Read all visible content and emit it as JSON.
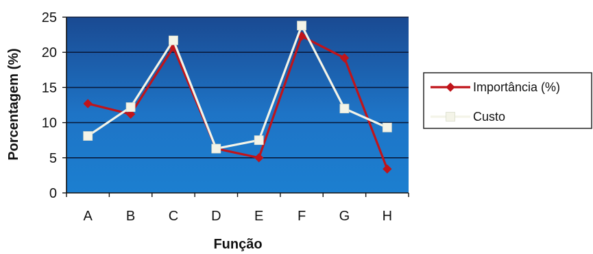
{
  "chart_data": {
    "type": "line",
    "categories": [
      "A",
      "B",
      "C",
      "D",
      "E",
      "F",
      "G",
      "H"
    ],
    "series": [
      {
        "name": "Importância (%)",
        "values": [
          12.7,
          11.2,
          20.7,
          6.3,
          5.0,
          22.3,
          19.2,
          3.4
        ],
        "color": "#c0141a",
        "marker": "diamond"
      },
      {
        "name": "Custo",
        "values": [
          8.1,
          12.2,
          21.7,
          6.3,
          7.5,
          23.8,
          12.0,
          9.3
        ],
        "color": "#f4f4e8",
        "marker": "square"
      }
    ],
    "xlabel": "Função",
    "ylabel": "Porcentagem (%)",
    "ylim": [
      0,
      25
    ],
    "yticks": [
      0,
      5,
      10,
      15,
      20,
      25
    ],
    "grid": true,
    "legend_position": "right",
    "plot_background": [
      "#1a4a92",
      "#1c7fd0"
    ]
  }
}
